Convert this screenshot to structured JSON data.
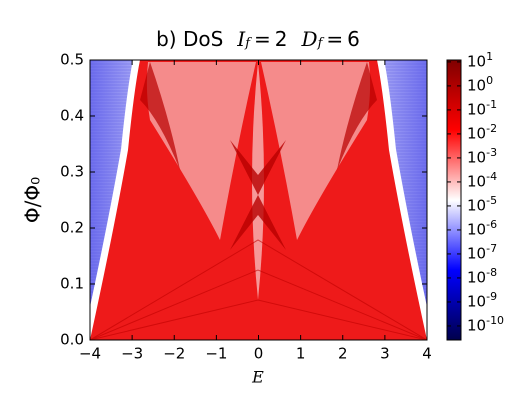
{
  "chart_data": {
    "type": "heatmap",
    "title": "b) DoS",
    "parameters": [
      {
        "symbol": "I",
        "subscript": "f",
        "relation": "=",
        "value": 2
      },
      {
        "symbol": "D",
        "subscript": "f",
        "relation": "=",
        "value": 6
      }
    ],
    "xlabel": "E",
    "ylabel": "Φ/Φ₀",
    "xlim": [
      -4,
      4
    ],
    "xticks": [
      {
        "value": -4,
        "label": "−4"
      },
      {
        "value": -3,
        "label": "−3"
      },
      {
        "value": -2,
        "label": "−2"
      },
      {
        "value": -1,
        "label": "−1"
      },
      0,
      1,
      2,
      3,
      4
    ],
    "ylim": [
      0,
      0.5
    ],
    "yticks": [
      {
        "value": 0,
        "label": "0.0"
      },
      0.1,
      0.2,
      0.3,
      0.4,
      0.5
    ],
    "colormap": [
      "#00004c",
      "#0000ff",
      "#ffffff",
      "#ff0000",
      "#800000"
    ],
    "colorbar_scale": "log",
    "clim": [
      2.6e-11,
      12
    ],
    "colorbar_ticks": [
      {
        "value": 10,
        "label": "10^1"
      },
      {
        "value": 1,
        "label": "10^0"
      },
      {
        "value": 0.1,
        "label": "10^-1"
      },
      {
        "value": 0.01,
        "label": "10^-2"
      },
      {
        "value": 0.001,
        "label": "10^-3"
      },
      {
        "value": 0.0001,
        "label": "10^-4"
      },
      {
        "value": 1e-05,
        "label": "10^-5"
      },
      {
        "value": 1e-06,
        "label": "10^-6"
      },
      {
        "value": 1e-07,
        "label": "10^-7"
      },
      {
        "value": 1e-08,
        "label": "10^-8"
      },
      {
        "value": 1e-09,
        "label": "10^-9"
      },
      {
        "value": 1e-10,
        "label": "10^-10"
      }
    ]
  }
}
